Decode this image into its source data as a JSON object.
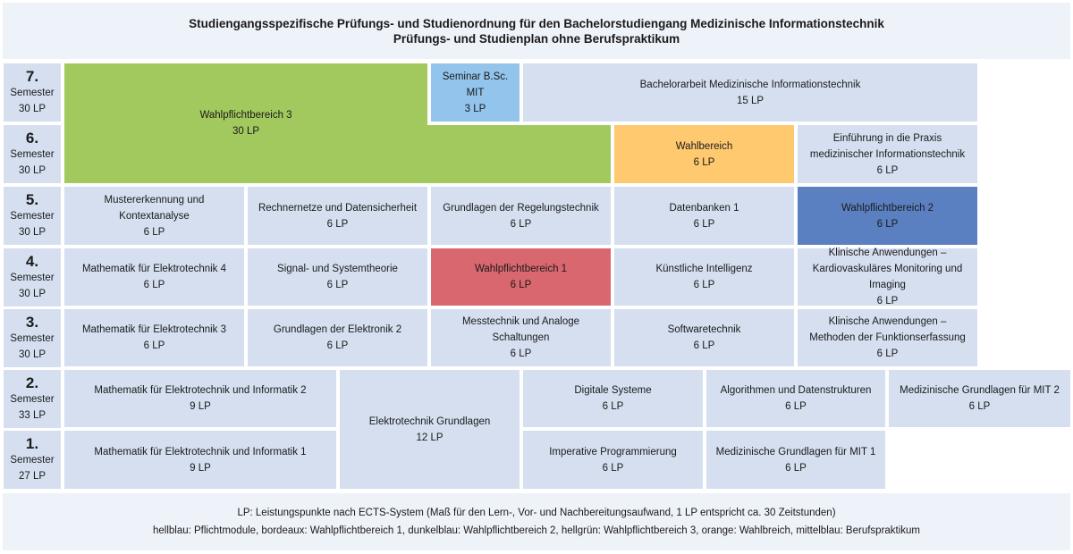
{
  "header": {
    "title_line1": "Studiengangsspezifische Prüfungs- und Studienordnung für den Bachelorstudiengang Medizinische Informationstechnik",
    "title_line2": "Prüfungs- und Studienplan ohne Berufspraktikum"
  },
  "colors": {
    "pflicht": "#d5dff0",
    "wahlpflicht1": "#d9676f",
    "wahlpflicht2": "#5a80c2",
    "wahlpflicht3": "#a2c95d",
    "wahlbereich": "#ffc96f",
    "seminar": "#92c4ec"
  },
  "semesters": [
    {
      "id": "7",
      "num": "7.",
      "word": "Semester",
      "lp": "30 LP"
    },
    {
      "id": "6",
      "num": "6.",
      "word": "Semester",
      "lp": "30 LP"
    },
    {
      "id": "5",
      "num": "5.",
      "word": "Semester",
      "lp": "30 LP"
    },
    {
      "id": "4",
      "num": "4.",
      "word": "Semester",
      "lp": "30 LP"
    },
    {
      "id": "3",
      "num": "3.",
      "word": "Semester",
      "lp": "30 LP"
    },
    {
      "id": "2",
      "num": "2.",
      "word": "Semester",
      "lp": "33 LP"
    },
    {
      "id": "1",
      "num": "1.",
      "word": "Semester",
      "lp": "27 LP"
    }
  ],
  "modules": [
    {
      "id": "wahlpflichtbereich-3",
      "lines": [
        "Wahlpflichtbereich 3",
        "30 LP"
      ],
      "color": "#a2c95d"
    },
    {
      "id": "seminar-bsc-mit",
      "lines": [
        "Seminar B.Sc. MIT",
        "3 LP"
      ],
      "color": "#92c4ec"
    },
    {
      "id": "bachelorarbeit",
      "lines": [
        "Bachelorarbeit Medizinische Informationstechnik",
        "15 LP"
      ],
      "color": "#d5dff0"
    },
    {
      "id": "wahlbereich",
      "lines": [
        "Wahlbereich",
        "6 LP"
      ],
      "color": "#ffc96f"
    },
    {
      "id": "einfuehrung-praxis",
      "lines": [
        "Einführung in die Praxis",
        "medizinischer Informationstechnik",
        "6 LP"
      ],
      "color": "#d5dff0"
    },
    {
      "id": "mustererkennung",
      "lines": [
        "Mustererkennung und Kontextanalyse",
        "6 LP"
      ],
      "color": "#d5dff0"
    },
    {
      "id": "rechnernetze",
      "lines": [
        "Rechnernetze und Datensicherheit",
        "6 LP"
      ],
      "color": "#d5dff0"
    },
    {
      "id": "regelungstechnik",
      "lines": [
        "Grundlagen der Regelungstechnik",
        "6 LP"
      ],
      "color": "#d5dff0"
    },
    {
      "id": "datenbanken-1",
      "lines": [
        "Datenbanken 1",
        "6 LP"
      ],
      "color": "#d5dff0"
    },
    {
      "id": "wahlpflichtbereich-2",
      "lines": [
        "Wahlpflichtbereich 2",
        "6 LP"
      ],
      "color": "#5a80c2"
    },
    {
      "id": "mathe-et-4",
      "lines": [
        "Mathematik für Elektrotechnik 4",
        "6 LP"
      ],
      "color": "#d5dff0"
    },
    {
      "id": "signal-systemtheorie",
      "lines": [
        "Signal- und Systemtheorie",
        "6 LP"
      ],
      "color": "#d5dff0"
    },
    {
      "id": "wahlpflichtbereich-1",
      "lines": [
        "Wahlpflichtbereich 1",
        "6 LP"
      ],
      "color": "#d9676f"
    },
    {
      "id": "kuenstliche-intelligenz",
      "lines": [
        "Künstliche Intelligenz",
        "6 LP"
      ],
      "color": "#d5dff0"
    },
    {
      "id": "klinische-kardio",
      "lines": [
        "Klinische Anwendungen –",
        "Kardiovaskuläres Monitoring und Imaging",
        "6 LP"
      ],
      "color": "#d5dff0"
    },
    {
      "id": "mathe-et-3",
      "lines": [
        "Mathematik für Elektrotechnik 3",
        "6 LP"
      ],
      "color": "#d5dff0"
    },
    {
      "id": "elektronik-2",
      "lines": [
        "Grundlagen der Elektronik 2",
        "6 LP"
      ],
      "color": "#d5dff0"
    },
    {
      "id": "messtechnik",
      "lines": [
        "Messtechnik und Analoge Schaltungen",
        "6 LP"
      ],
      "color": "#d5dff0"
    },
    {
      "id": "softwaretechnik",
      "lines": [
        "Softwaretechnik",
        "6 LP"
      ],
      "color": "#d5dff0"
    },
    {
      "id": "klinische-funktion",
      "lines": [
        "Klinische Anwendungen –",
        "Methoden der Funktionserfassung",
        "6 LP"
      ],
      "color": "#d5dff0"
    },
    {
      "id": "mathe-et-inf-2",
      "lines": [
        "Mathematik für Elektrotechnik und Informatik 2",
        "9 LP"
      ],
      "color": "#d5dff0"
    },
    {
      "id": "elektrotechnik-grundlagen",
      "lines": [
        "Elektrotechnik Grundlagen",
        "12 LP"
      ],
      "color": "#d5dff0"
    },
    {
      "id": "digitale-systeme",
      "lines": [
        "Digitale Systeme",
        "6 LP"
      ],
      "color": "#d5dff0"
    },
    {
      "id": "algorithmen",
      "lines": [
        "Algorithmen und Datenstrukturen",
        "6 LP"
      ],
      "color": "#d5dff0"
    },
    {
      "id": "med-grundlagen-2",
      "lines": [
        "Medizinische Grundlagen für MIT 2",
        "6 LP"
      ],
      "color": "#d5dff0"
    },
    {
      "id": "mathe-et-inf-1",
      "lines": [
        "Mathematik für Elektrotechnik und Informatik 1",
        "9 LP"
      ],
      "color": "#d5dff0"
    },
    {
      "id": "imperative-programmierung",
      "lines": [
        "Imperative Programmierung",
        "6 LP"
      ],
      "color": "#d5dff0"
    },
    {
      "id": "med-grundlagen-1",
      "lines": [
        "Medizinische Grundlagen für MIT 1",
        "6 LP"
      ],
      "color": "#d5dff0"
    }
  ],
  "footer": {
    "line1": "LP: Leistungspunkte nach ECTS-System (Maß für den Lern-, Vor- und Nachbereitungsaufwand, 1 LP entspricht ca. 30 Zeitstunden)",
    "line2": "hellblau: Pflichtmodule, bordeaux: Wahlpflichtbereich 1, dunkelblau: Wahlpflichtbereich 2, hellgrün: Wahlpflichtbereich 3, orange: Wahlbreich, mittelblau: Berufspraktikum"
  }
}
